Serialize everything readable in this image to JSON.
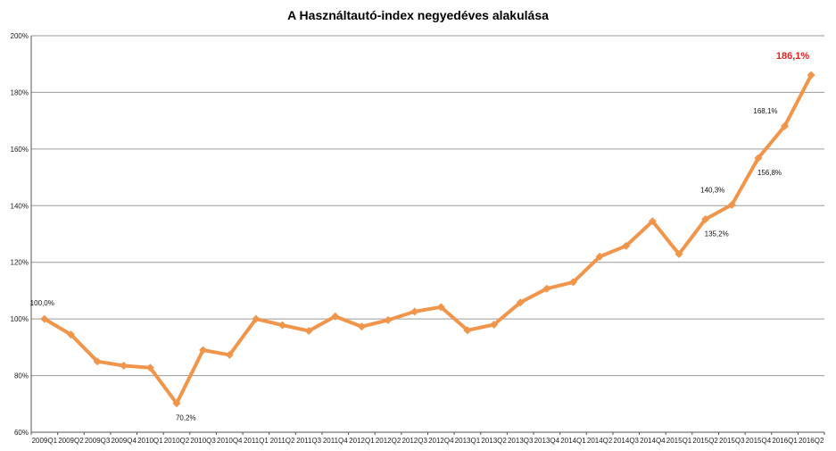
{
  "chart_data": {
    "type": "line",
    "title": "A Használtautó-index negyedéves alakulása",
    "xlabel": "",
    "ylabel": "",
    "ylim": [
      60,
      200
    ],
    "y_ticks": [
      60,
      80,
      100,
      120,
      140,
      160,
      180,
      200
    ],
    "y_tick_labels": [
      "60%",
      "80%",
      "100%",
      "120%",
      "140%",
      "160%",
      "180%",
      "200%"
    ],
    "grid": "horizontal",
    "legend": "none",
    "line_color": "#f0954a",
    "highlight_color": "#e8201e",
    "categories": [
      "2009Q1",
      "2009Q2",
      "2009Q3",
      "2009Q4",
      "2010Q1",
      "2010Q2",
      "2010Q3",
      "2010Q4",
      "2011Q1",
      "2011Q2",
      "2011Q3",
      "2011Q4",
      "2012Q1",
      "2012Q2",
      "2012Q3",
      "2012Q4",
      "2013Q1",
      "2013Q2",
      "2013Q3",
      "2013Q4",
      "2014Q1",
      "2014Q2",
      "2014Q3",
      "2014Q4",
      "2015Q1",
      "2015Q2",
      "2015Q3",
      "2015Q4",
      "2016Q1",
      "2016Q2"
    ],
    "values": [
      100.0,
      94.5,
      85.0,
      83.5,
      82.8,
      70.2,
      89.0,
      87.3,
      100.0,
      97.8,
      95.8,
      100.9,
      97.3,
      99.6,
      102.6,
      104.2,
      96.0,
      98.0,
      105.8,
      110.7,
      113.0,
      122.0,
      125.8,
      134.5,
      122.9,
      135.2,
      140.3,
      156.8,
      168.1,
      186.1
    ],
    "data_labels": [
      {
        "index": 0,
        "text": "100,0%",
        "position": "above-left"
      },
      {
        "index": 5,
        "text": "70,2%",
        "position": "below-right"
      },
      {
        "index": 25,
        "text": "135,2%",
        "position": "below-right"
      },
      {
        "index": 26,
        "text": "140,3%",
        "position": "above-left"
      },
      {
        "index": 27,
        "text": "156,8%",
        "position": "below-right"
      },
      {
        "index": 28,
        "text": "168,1%",
        "position": "above-left"
      },
      {
        "index": 29,
        "text": "186,1%",
        "position": "above-left",
        "highlight": true
      }
    ]
  }
}
